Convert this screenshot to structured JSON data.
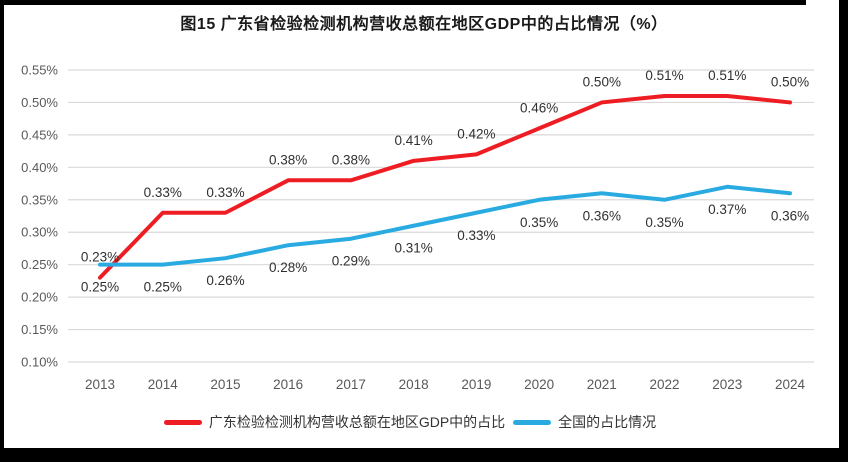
{
  "chart_data": {
    "type": "line",
    "title": "图15  广东省检验检测机构营收总额在地区GDP中的占比情况（%）",
    "categories": [
      "2013",
      "2014",
      "2015",
      "2016",
      "2017",
      "2018",
      "2019",
      "2020",
      "2021",
      "2022",
      "2023",
      "2024"
    ],
    "series": [
      {
        "name": "广东检验检测机构营收总额在地区GDP中的占比",
        "color": "#ee1d23",
        "label_position": "above",
        "values": [
          0.23,
          0.33,
          0.33,
          0.38,
          0.38,
          0.41,
          0.42,
          0.46,
          0.5,
          0.51,
          0.51,
          0.5
        ]
      },
      {
        "name": "全国的占比情况",
        "color": "#29abe2",
        "label_position": "below",
        "values": [
          0.25,
          0.25,
          0.26,
          0.28,
          0.29,
          0.31,
          0.33,
          0.35,
          0.36,
          0.35,
          0.37,
          0.36
        ]
      }
    ],
    "ylim": [
      0.1,
      0.55
    ],
    "ytick_step": 0.05,
    "ytick_labels": [
      "0.10%",
      "0.15%",
      "0.20%",
      "0.25%",
      "0.30%",
      "0.35%",
      "0.40%",
      "0.45%",
      "0.50%",
      "0.55%"
    ],
    "grid": true,
    "legend_position": "bottom",
    "colors": {
      "gridline": "#d9d9d9",
      "tick_label": "#595959",
      "data_label": "#303030",
      "title": "#1a1a1a"
    }
  }
}
